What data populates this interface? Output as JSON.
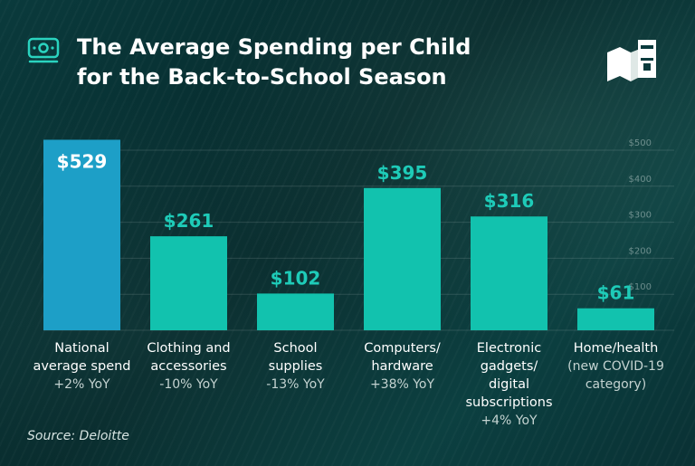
{
  "header": {
    "title_line1": "The Average Spending per Child",
    "title_line2": "for the Back-to-School Season"
  },
  "source": "Source: Deloitte",
  "colors": {
    "accent_bar": "#1d9fc7",
    "bar": "#12c2ae",
    "value_label": "#1ecbb8",
    "title": "#ffffff",
    "icon": "#2ad3bf"
  },
  "icons": {
    "header_icon": "money-icon",
    "logo": "books-logo-icon"
  },
  "chart_data": {
    "type": "bar",
    "title": "The Average Spending per Child for the Back-to-School Season",
    "categories": [
      [
        "National",
        "average spend"
      ],
      [
        "Clothing and",
        "accessories"
      ],
      [
        "School",
        "supplies"
      ],
      [
        "Computers/",
        "hardware"
      ],
      [
        "Electronic",
        "gadgets/",
        "digital",
        "subscriptions"
      ],
      [
        "Home/health"
      ]
    ],
    "sublabels": [
      [
        "+2% YoY"
      ],
      [
        "-10% YoY"
      ],
      [
        "-13% YoY"
      ],
      [
        "+38% YoY"
      ],
      [
        "+4% YoY"
      ],
      [
        "(new COVID-19",
        "category)"
      ]
    ],
    "values": [
      529,
      261,
      102,
      395,
      316,
      61
    ],
    "value_labels": [
      "$529",
      "$261",
      "$102",
      "$395",
      "$316",
      "$61"
    ],
    "highlight_index": 0,
    "yticks": [
      100,
      200,
      300,
      400,
      500
    ],
    "ytick_labels": [
      "$100",
      "$200",
      "$300",
      "$400",
      "$500"
    ],
    "ylim": [
      0,
      550
    ],
    "xlabel": "",
    "ylabel": "",
    "grid": true,
    "legend": "none"
  }
}
